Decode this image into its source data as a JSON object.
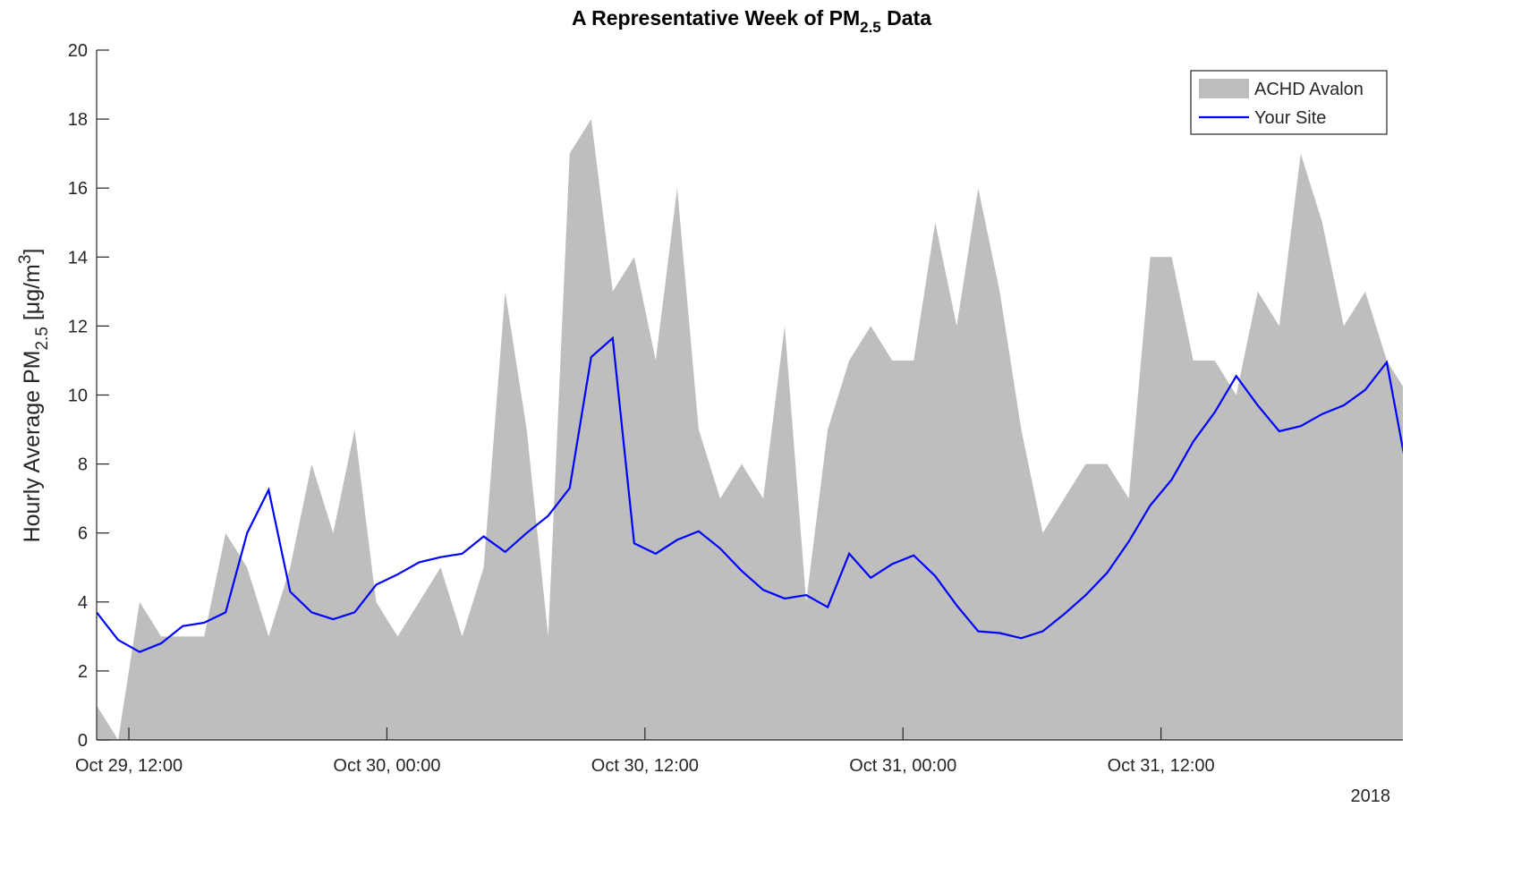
{
  "chart_data": {
    "type": "area-line",
    "title": [
      "A Representative Week of PM",
      "2.5",
      " Data"
    ],
    "ylabel": [
      "Hourly Average PM",
      "2.5",
      " [μg/m",
      "3",
      "]"
    ],
    "x_secondary_label": "2018",
    "x": [
      "2018-10-29T10:30",
      "2018-10-29T11:30",
      "2018-10-29T12:30",
      "2018-10-29T13:30",
      "2018-10-29T14:30",
      "2018-10-29T15:30",
      "2018-10-29T16:30",
      "2018-10-29T17:30",
      "2018-10-29T18:30",
      "2018-10-29T19:30",
      "2018-10-29T20:30",
      "2018-10-29T21:30",
      "2018-10-29T22:30",
      "2018-10-29T23:30",
      "2018-10-30T00:30",
      "2018-10-30T01:30",
      "2018-10-30T02:30",
      "2018-10-30T03:30",
      "2018-10-30T04:30",
      "2018-10-30T05:30",
      "2018-10-30T06:30",
      "2018-10-30T07:30",
      "2018-10-30T08:30",
      "2018-10-30T09:30",
      "2018-10-30T10:30",
      "2018-10-30T11:30",
      "2018-10-30T12:30",
      "2018-10-30T13:30",
      "2018-10-30T14:30",
      "2018-10-30T15:30",
      "2018-10-30T16:30",
      "2018-10-30T17:30",
      "2018-10-30T18:30",
      "2018-10-30T19:30",
      "2018-10-30T20:30",
      "2018-10-30T21:30",
      "2018-10-30T22:30",
      "2018-10-30T23:30",
      "2018-10-31T00:30",
      "2018-10-31T01:30",
      "2018-10-31T02:30",
      "2018-10-31T03:30",
      "2018-10-31T04:30",
      "2018-10-31T05:30",
      "2018-10-31T06:30",
      "2018-10-31T07:30",
      "2018-10-31T08:30",
      "2018-10-31T09:30",
      "2018-10-31T10:30",
      "2018-10-31T11:30",
      "2018-10-31T12:30",
      "2018-10-31T13:30",
      "2018-10-31T14:30",
      "2018-10-31T15:30",
      "2018-10-31T16:30",
      "2018-10-31T17:30",
      "2018-10-31T18:30",
      "2018-10-31T19:30",
      "2018-10-31T20:30",
      "2018-10-31T21:30",
      "2018-10-31T22:30",
      "2018-10-31T23:30"
    ],
    "series": [
      {
        "name": "ACHD Avalon",
        "kind": "area",
        "color": "#bebebe",
        "values": [
          1,
          0,
          4,
          3,
          3,
          3,
          6,
          5,
          3,
          5,
          8,
          6,
          9,
          4,
          3,
          4,
          5,
          3,
          5,
          13,
          9,
          3,
          17,
          18,
          13,
          14,
          11,
          16,
          9,
          7,
          8,
          7,
          12,
          4,
          9,
          11,
          12,
          11,
          11,
          15,
          12,
          16,
          13,
          9,
          6,
          7,
          8,
          8,
          7,
          14,
          14,
          11,
          11,
          10,
          13,
          12,
          17,
          15,
          12,
          13,
          11,
          10
        ]
      },
      {
        "name": "Your Site",
        "kind": "line",
        "color": "#0000ff",
        "values": [
          3.7,
          2.9,
          2.55,
          2.8,
          3.3,
          3.4,
          3.7,
          6.0,
          7.25,
          4.3,
          3.7,
          3.5,
          3.7,
          4.5,
          4.8,
          5.15,
          5.3,
          5.4,
          5.9,
          5.45,
          6.0,
          6.5,
          7.3,
          11.1,
          11.65,
          5.7,
          5.4,
          5.8,
          6.05,
          5.55,
          4.9,
          4.35,
          4.1,
          4.2,
          3.85,
          5.4,
          4.7,
          5.1,
          5.35,
          4.75,
          3.9,
          3.15,
          3.1,
          2.95,
          3.15,
          3.65,
          4.2,
          4.85,
          5.75,
          6.8,
          7.55,
          8.65,
          9.5,
          10.55,
          9.7,
          8.95,
          9.1,
          9.45,
          9.7,
          10.15,
          10.95,
          7.6
        ]
      }
    ],
    "xlim": [
      "2018-10-29T10:30",
      "2018-10-31T23:15"
    ],
    "xticks": [
      {
        "value": "2018-10-29T12:00",
        "label": "Oct 29, 12:00"
      },
      {
        "value": "2018-10-30T00:00",
        "label": "Oct 30, 00:00"
      },
      {
        "value": "2018-10-30T12:00",
        "label": "Oct 30, 12:00"
      },
      {
        "value": "2018-10-31T00:00",
        "label": "Oct 31, 00:00"
      },
      {
        "value": "2018-10-31T12:00",
        "label": "Oct 31, 12:00"
      }
    ],
    "ylim": [
      0,
      20
    ],
    "yticks": [
      0,
      2,
      4,
      6,
      8,
      10,
      12,
      14,
      16,
      18,
      20
    ],
    "legend": "upper right"
  }
}
